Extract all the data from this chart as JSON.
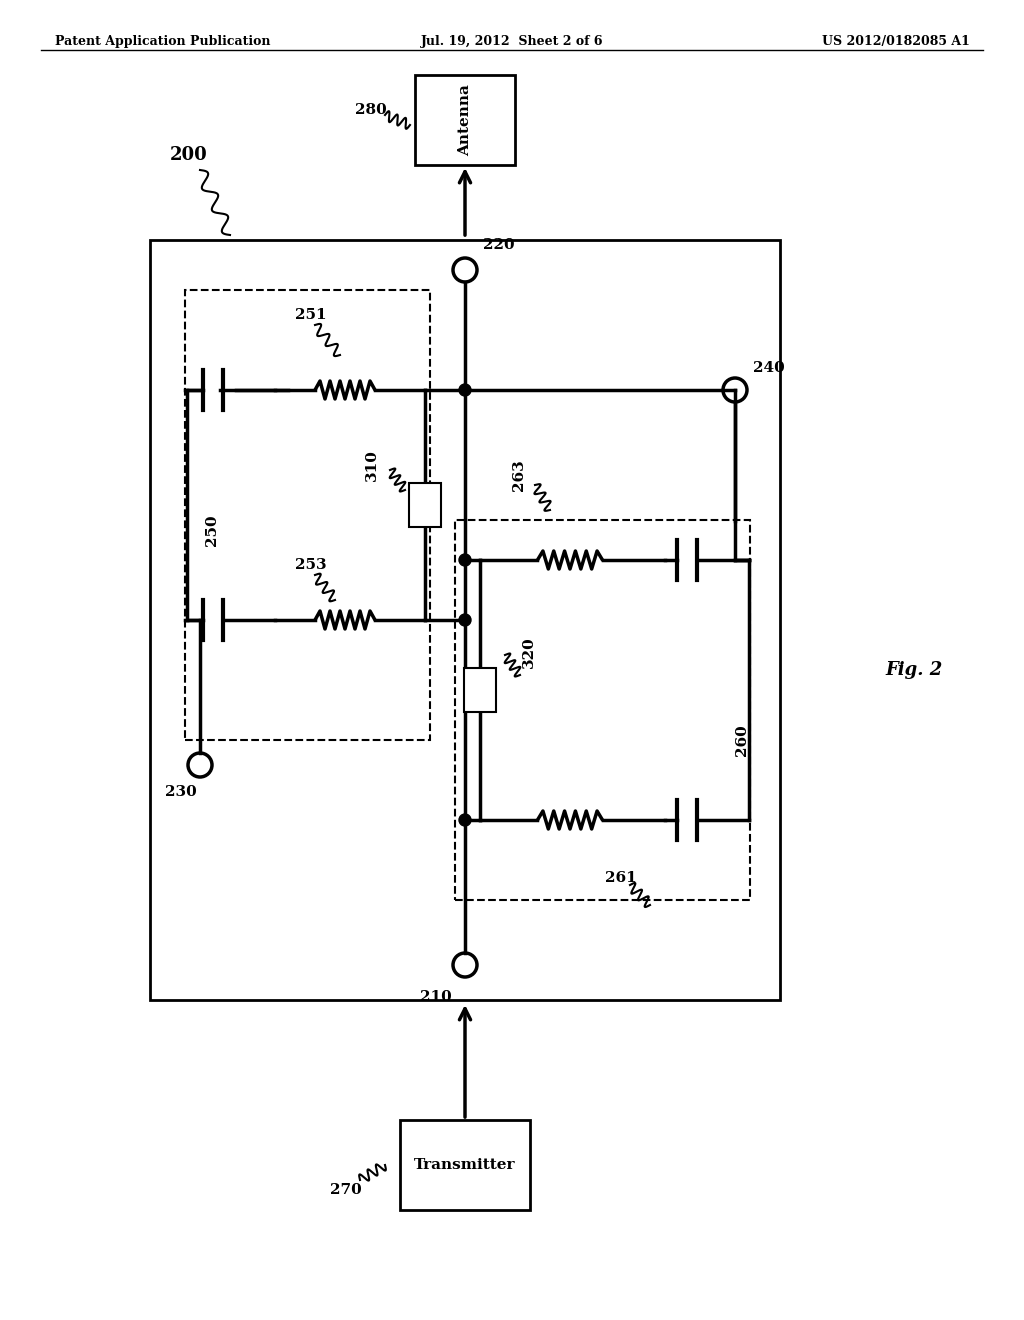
{
  "bg_color": "#ffffff",
  "header_left": "Patent Application Publication",
  "header_mid": "Jul. 19, 2012  Sheet 2 of 6",
  "header_right": "US 2012/0182085 A1",
  "fig_label": "Fig. 2",
  "label_200": "200",
  "label_210": "210",
  "label_220": "220",
  "label_230": "230",
  "label_240": "240",
  "label_250": "250",
  "label_251": "251",
  "label_253": "253",
  "label_260": "260",
  "label_261": "261",
  "label_263": "263",
  "label_270": "270",
  "label_280": "280",
  "label_310": "310",
  "label_320": "320",
  "antenna_label": "Antenna",
  "transmitter_label": "Transmitter"
}
